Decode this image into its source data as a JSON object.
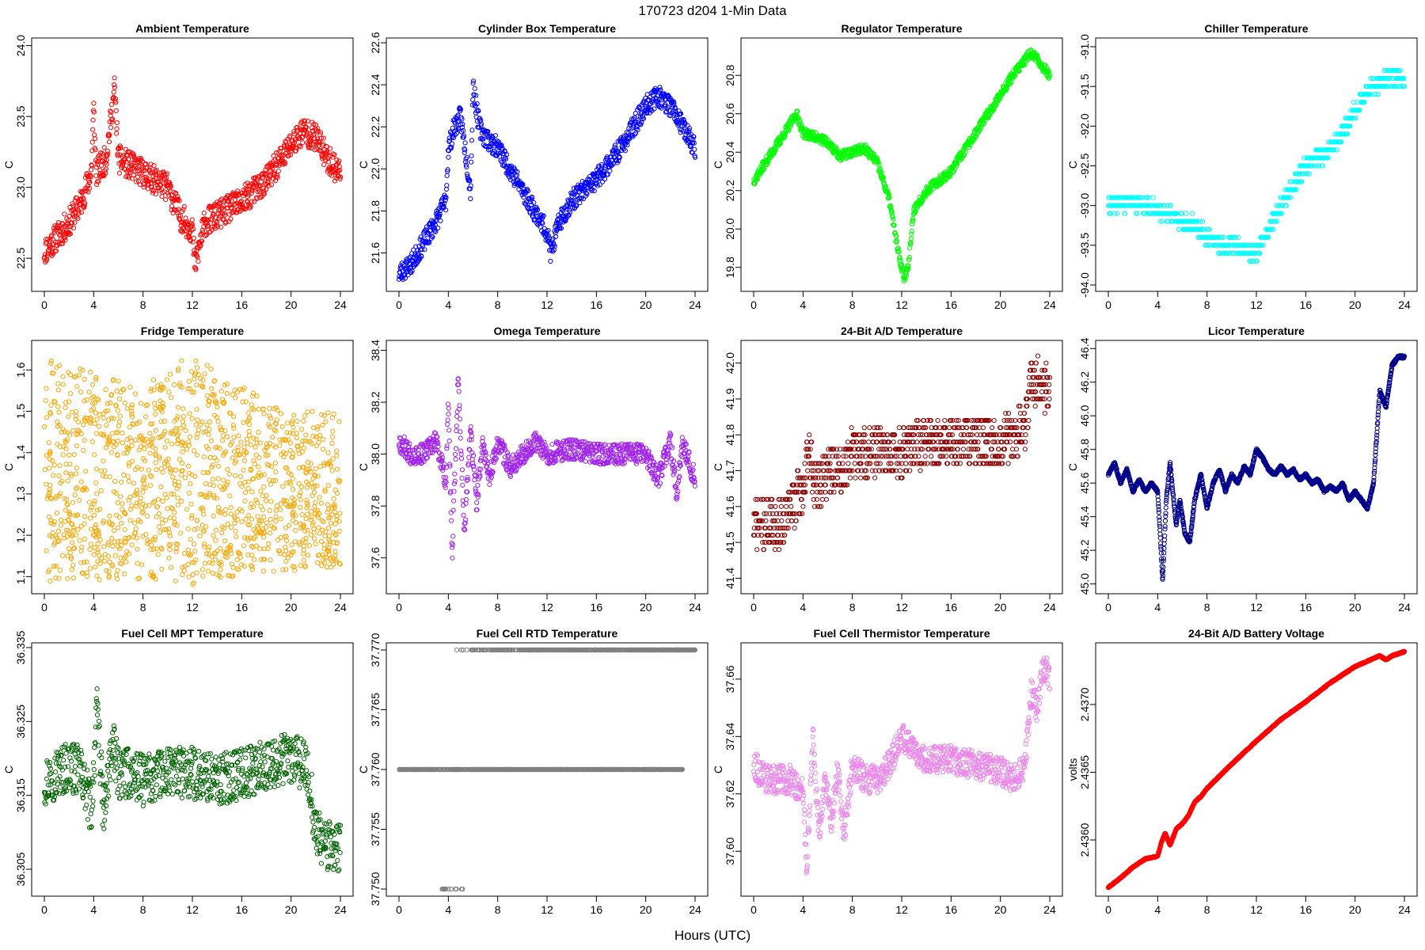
{
  "title": "170723    d204    1-Min Data",
  "xlabel": "Hours (UTC)",
  "chart_data": [
    {
      "type": "scatter",
      "title": "Ambient Temperature",
      "ylabel": "C",
      "color": "#ff0000",
      "xlim": [
        0,
        24
      ],
      "xticks": [
        0,
        4,
        8,
        12,
        16,
        20,
        24
      ],
      "ylim": [
        22.3,
        24.02
      ],
      "yticks": [
        22.5,
        23.0,
        23.5,
        24.0
      ],
      "ytick_labels": [
        "22.5",
        "23.0",
        "23.5",
        "24.0"
      ],
      "noise": 0.1,
      "seed": 11,
      "x": [
        0,
        1,
        2,
        3,
        3.8,
        4,
        4.2,
        5,
        5.7,
        6,
        7,
        8,
        10,
        11,
        12,
        12.2,
        13,
        14,
        16,
        18,
        20,
        21,
        22,
        23,
        24
      ],
      "y": [
        22.55,
        22.65,
        22.75,
        22.9,
        23.1,
        23.55,
        23.1,
        23.2,
        23.7,
        23.2,
        23.15,
        23.1,
        23.0,
        22.8,
        22.7,
        22.45,
        22.75,
        22.8,
        22.9,
        23.05,
        23.3,
        23.4,
        23.35,
        23.2,
        23.1
      ]
    },
    {
      "type": "scatter",
      "title": "Cylinder Box Temperature",
      "ylabel": "C",
      "color": "#0000ff",
      "xlim": [
        0,
        24
      ],
      "xticks": [
        0,
        4,
        8,
        12,
        16,
        20,
        24
      ],
      "ylim": [
        21.44,
        22.6
      ],
      "yticks": [
        21.6,
        21.8,
        22.0,
        22.2,
        22.4,
        22.6
      ],
      "ytick_labels": [
        "21.6",
        "21.8",
        "22.0",
        "22.2",
        "22.4",
        "22.6"
      ],
      "noise": 0.05,
      "seed": 23,
      "x": [
        0,
        1,
        2,
        3,
        3.8,
        4,
        4.5,
        5,
        5.8,
        6,
        6.5,
        7,
        8,
        9,
        10,
        11,
        12,
        12.3,
        13,
        14,
        16,
        18,
        20,
        21,
        22,
        23,
        24
      ],
      "y": [
        21.5,
        21.55,
        21.65,
        21.75,
        21.85,
        22.1,
        22.2,
        22.25,
        21.9,
        22.4,
        22.2,
        22.15,
        22.1,
        22.0,
        21.9,
        21.8,
        21.7,
        21.6,
        21.75,
        21.85,
        21.95,
        22.1,
        22.3,
        22.35,
        22.3,
        22.2,
        22.1
      ]
    },
    {
      "type": "scatter",
      "title": "Regulator Temperature",
      "ylabel": "C",
      "color": "#00ff00",
      "xlim": [
        0,
        24
      ],
      "xticks": [
        0,
        4,
        8,
        12,
        16,
        20,
        24
      ],
      "ylim": [
        19.7,
        20.97
      ],
      "yticks": [
        19.8,
        20.0,
        20.2,
        20.4,
        20.6,
        20.8
      ],
      "ytick_labels": [
        "19.8",
        "20.0",
        "20.2",
        "20.4",
        "20.6",
        "20.8"
      ],
      "noise": 0.025,
      "seed": 37,
      "x": [
        0,
        1,
        2,
        3,
        3.5,
        4,
        5,
        6,
        7,
        8,
        9,
        10,
        11,
        11.8,
        12.2,
        12.5,
        13,
        14,
        15,
        16,
        17,
        18,
        19,
        20,
        21,
        22,
        22.5,
        23,
        24
      ],
      "y": [
        20.25,
        20.35,
        20.45,
        20.55,
        20.6,
        20.5,
        20.48,
        20.45,
        20.38,
        20.4,
        20.42,
        20.35,
        20.15,
        19.85,
        19.75,
        19.8,
        20.1,
        20.2,
        20.25,
        20.3,
        20.4,
        20.5,
        20.6,
        20.7,
        20.8,
        20.88,
        20.92,
        20.88,
        20.8
      ]
    },
    {
      "type": "scatter",
      "title": "Chiller Temperature",
      "ylabel": "C",
      "color": "#00ffff",
      "xlim": [
        0,
        24
      ],
      "xticks": [
        0,
        4,
        8,
        12,
        16,
        20,
        24
      ],
      "ylim": [
        -94.02,
        -90.95
      ],
      "yticks": [
        -94.0,
        -93.5,
        -93.0,
        -92.5,
        -92.0,
        -91.5,
        -91.0
      ],
      "ytick_labels": [
        "-94.0",
        "-93.5",
        "-93.0",
        "-92.5",
        "-92.0",
        "-91.5",
        "-91.0"
      ],
      "noise": 0.1,
      "seed": 41,
      "quant": 0.1,
      "x": [
        0,
        2,
        4,
        5,
        6,
        7,
        8,
        9,
        10,
        11,
        12,
        13,
        14,
        15,
        16,
        17,
        18,
        19,
        20,
        21,
        22,
        23,
        24
      ],
      "y": [
        -93.0,
        -92.95,
        -93.05,
        -93.1,
        -93.2,
        -93.25,
        -93.4,
        -93.5,
        -93.5,
        -93.55,
        -93.6,
        -93.3,
        -93.0,
        -92.75,
        -92.5,
        -92.4,
        -92.3,
        -92.1,
        -91.8,
        -91.55,
        -91.45,
        -91.4,
        -91.4
      ]
    },
    {
      "type": "scatter",
      "title": "Fridge Temperature",
      "ylabel": "C",
      "color": "#ffa500",
      "xlim": [
        0,
        24
      ],
      "xticks": [
        0,
        4,
        8,
        12,
        16,
        20,
        24
      ],
      "ylim": [
        1.07,
        1.66
      ],
      "yticks": [
        1.1,
        1.2,
        1.3,
        1.4,
        1.5,
        1.6
      ],
      "ytick_labels": [
        "1.1",
        "1.2",
        "1.3",
        "1.4",
        "1.5",
        "1.6"
      ],
      "seed": 53,
      "mode": "band",
      "x": [
        0,
        4,
        8,
        12,
        16,
        20,
        24
      ],
      "y": [
        1.63,
        1.6,
        1.56,
        1.64,
        1.56,
        1.5,
        1.5
      ],
      "y_low": [
        1.08,
        1.09,
        1.09,
        1.08,
        1.1,
        1.11,
        1.12
      ]
    },
    {
      "type": "scatter",
      "title": "Omega Temperature",
      "ylabel": "C",
      "color": "#a020f0",
      "xlim": [
        0,
        24
      ],
      "xticks": [
        0,
        4,
        8,
        12,
        16,
        20,
        24
      ],
      "ylim": [
        37.48,
        38.42
      ],
      "yticks": [
        37.6,
        37.8,
        38.0,
        38.2,
        38.4
      ],
      "ytick_labels": [
        "37.6",
        "37.8",
        "38.0",
        "38.2",
        "38.4"
      ],
      "noise": 0.04,
      "seed": 67,
      "x": [
        0,
        1,
        2,
        3,
        3.8,
        4,
        4.3,
        4.8,
        5.3,
        5.8,
        6.3,
        6.8,
        7.3,
        8,
        9,
        10,
        11,
        12,
        14,
        16,
        18,
        20,
        21,
        22,
        22.5,
        23,
        24
      ],
      "y": [
        38.05,
        38.0,
        38.0,
        38.05,
        37.9,
        38.2,
        37.6,
        38.3,
        37.7,
        38.1,
        37.8,
        38.05,
        37.9,
        38.05,
        37.95,
        38.0,
        38.05,
        38.0,
        38.02,
        38.0,
        38.0,
        38.0,
        37.9,
        38.05,
        37.85,
        38.05,
        37.9
      ]
    },
    {
      "type": "scatter",
      "title": "24-Bit A/D Temperature",
      "ylabel": "C",
      "color": "#8b0000",
      "xlim": [
        0,
        24
      ],
      "xticks": [
        0,
        4,
        8,
        12,
        16,
        20,
        24
      ],
      "ylim": [
        41.37,
        42.05
      ],
      "yticks": [
        41.4,
        41.5,
        41.6,
        41.7,
        41.8,
        41.9,
        42.0
      ],
      "ytick_labels": [
        "41.4",
        "41.5",
        "41.6",
        "41.7",
        "41.8",
        "41.9",
        "42.0"
      ],
      "noise": 0.07,
      "seed": 71,
      "quant": 0.02,
      "x": [
        0,
        1,
        2,
        3,
        4,
        4.5,
        5,
        6,
        7,
        8,
        10,
        12,
        14,
        16,
        18,
        20,
        21,
        22,
        22.5,
        23,
        24
      ],
      "y": [
        41.55,
        41.55,
        41.55,
        41.6,
        41.65,
        41.75,
        41.65,
        41.7,
        41.7,
        41.75,
        41.75,
        41.75,
        41.78,
        41.78,
        41.78,
        41.78,
        41.8,
        41.82,
        41.95,
        41.95,
        41.92
      ]
    },
    {
      "type": "scatter",
      "title": "Licor Temperature",
      "ylabel": "C",
      "color": "#00008b",
      "xlim": [
        0,
        24
      ],
      "xticks": [
        0,
        4,
        8,
        12,
        16,
        20,
        24
      ],
      "ylim": [
        44.97,
        46.42
      ],
      "yticks": [
        45.0,
        45.2,
        45.4,
        45.6,
        45.8,
        46.0,
        46.2,
        46.4
      ],
      "ytick_labels": [
        "45.0",
        "45.2",
        "45.4",
        "45.6",
        "45.8",
        "46.0",
        "46.2",
        "46.4"
      ],
      "noise": 0.008,
      "seed": 83,
      "dense": true,
      "x": [
        0,
        0.5,
        1,
        1.5,
        2,
        2.5,
        3,
        3.5,
        4,
        4.2,
        4.4,
        4.7,
        5,
        5.5,
        5.8,
        6.2,
        6.6,
        7,
        7.5,
        8,
        8.5,
        9,
        9.5,
        10,
        10.5,
        11,
        11.5,
        12,
        12.5,
        13,
        13.5,
        14,
        14.5,
        15,
        15.5,
        16,
        16.5,
        17,
        17.5,
        18,
        18.5,
        19,
        19.5,
        20,
        20.5,
        21,
        21.5,
        22,
        22.5,
        23,
        23.5,
        24
      ],
      "y": [
        45.65,
        45.72,
        45.6,
        45.68,
        45.55,
        45.62,
        45.55,
        45.6,
        45.55,
        45.3,
        45.02,
        45.5,
        45.72,
        45.35,
        45.5,
        45.3,
        45.25,
        45.5,
        45.65,
        45.45,
        45.6,
        45.68,
        45.55,
        45.65,
        45.6,
        45.7,
        45.65,
        45.8,
        45.75,
        45.68,
        45.65,
        45.7,
        45.65,
        45.68,
        45.62,
        45.65,
        45.6,
        45.62,
        45.55,
        45.58,
        45.55,
        45.6,
        45.5,
        45.55,
        45.5,
        45.45,
        45.6,
        46.15,
        46.05,
        46.3,
        46.35,
        46.35
      ]
    },
    {
      "type": "scatter",
      "title": "Fuel Cell MPT Temperature",
      "ylabel": "C",
      "color": "#006400",
      "xlim": [
        0,
        24
      ],
      "xticks": [
        0,
        4,
        8,
        12,
        16,
        20,
        24
      ],
      "ylim": [
        36.302,
        36.335
      ],
      "yticks": [
        36.305,
        36.315,
        36.325,
        36.335
      ],
      "ytick_labels": [
        "36.305",
        "36.315",
        "36.325",
        "36.335"
      ],
      "noise": 0.0035,
      "seed": 97,
      "x": [
        0,
        1,
        2,
        3,
        3.8,
        4.3,
        4.8,
        5.5,
        6,
        7,
        8,
        10,
        12,
        14,
        16,
        18,
        20,
        21,
        21.5,
        22,
        23,
        24
      ],
      "y": [
        36.317,
        36.318,
        36.319,
        36.318,
        36.313,
        36.327,
        36.312,
        36.322,
        36.318,
        36.318,
        36.317,
        36.318,
        36.318,
        36.317,
        36.318,
        36.319,
        36.32,
        36.319,
        36.317,
        36.31,
        36.308,
        36.308
      ]
    },
    {
      "type": "scatter",
      "title": "Fuel Cell RTD Temperature",
      "ylabel": "C",
      "color": "#808080",
      "xlim": [
        0,
        24
      ],
      "xticks": [
        0,
        4,
        8,
        12,
        16,
        20,
        24
      ],
      "ylim": [
        37.7498,
        37.7702
      ],
      "yticks": [
        37.75,
        37.755,
        37.76,
        37.765,
        37.77
      ],
      "ytick_labels": [
        "37.750",
        "37.755",
        "37.760",
        "37.765",
        "37.770"
      ],
      "seed": 101,
      "mode": "levels",
      "levels": [
        {
          "y": 37.76,
          "from": 0,
          "to": 23
        },
        {
          "y": 37.77,
          "from": 4.5,
          "to": 24
        },
        {
          "y": 37.75,
          "from": 3.5,
          "to": 5.2
        }
      ]
    },
    {
      "type": "scatter",
      "title": "Fuel Cell Thermistor Temperature",
      "ylabel": "C",
      "color": "#ee82ee",
      "xlim": [
        0,
        24
      ],
      "xticks": [
        0,
        4,
        8,
        12,
        16,
        20,
        24
      ],
      "ylim": [
        37.586,
        37.671
      ],
      "yticks": [
        37.6,
        37.62,
        37.64,
        37.66
      ],
      "ytick_labels": [
        "37.60",
        "37.62",
        "37.64",
        "37.66"
      ],
      "noise": 0.005,
      "seed": 113,
      "x": [
        0,
        1,
        2,
        3,
        4,
        4.3,
        4.8,
        5.3,
        5.8,
        6.3,
        6.8,
        7.3,
        8,
        9,
        10,
        11,
        12,
        13,
        14,
        16,
        18,
        20,
        21,
        22,
        22.5,
        23,
        23.5,
        24
      ],
      "y": [
        37.63,
        37.625,
        37.625,
        37.625,
        37.62,
        37.595,
        37.64,
        37.605,
        37.625,
        37.61,
        37.63,
        37.605,
        37.63,
        37.625,
        37.625,
        37.63,
        37.64,
        37.635,
        37.632,
        37.632,
        37.63,
        37.628,
        37.625,
        37.63,
        37.655,
        37.65,
        37.665,
        37.66
      ]
    },
    {
      "type": "scatter",
      "title": "24-Bit A/D Battery Voltage",
      "ylabel": "volts",
      "color": "#ff0000",
      "xlim": [
        0,
        24
      ],
      "xticks": [
        0,
        4,
        8,
        12,
        16,
        20,
        24
      ],
      "ylim": [
        2.43562,
        2.43742
      ],
      "yticks": [
        2.436,
        2.4365,
        2.437
      ],
      "ytick_labels": [
        "2.4360",
        "2.4365",
        "2.4370"
      ],
      "noise": 4e-06,
      "seed": 127,
      "dense": true,
      "x": [
        0,
        1,
        2,
        3,
        4,
        4.3,
        4.6,
        5,
        5.5,
        6,
        6.5,
        7,
        7.5,
        8,
        10,
        12,
        14,
        16,
        18,
        20,
        22,
        22.5,
        23,
        24
      ],
      "y": [
        2.43565,
        2.43572,
        2.4358,
        2.43586,
        2.43588,
        2.43598,
        2.43605,
        2.43596,
        2.43608,
        2.43612,
        2.43618,
        2.43628,
        2.43632,
        2.43638,
        2.43656,
        2.43673,
        2.43689,
        2.43702,
        2.43716,
        2.43728,
        2.43736,
        2.43733,
        2.43736,
        2.43739
      ]
    }
  ]
}
